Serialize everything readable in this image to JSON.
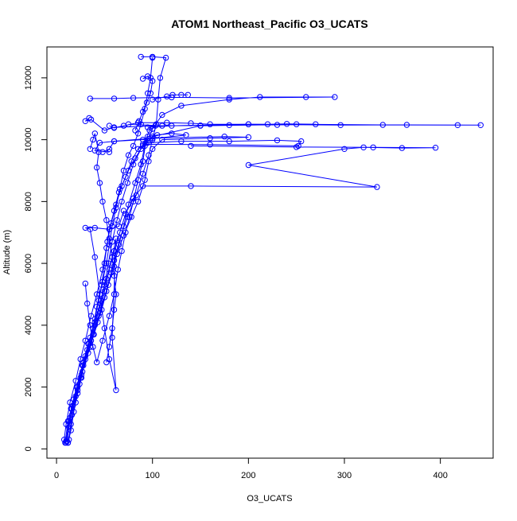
{
  "chart_data": {
    "type": "line",
    "title": "ATOM1 Northeast_Pacific O3_UCATS",
    "xlabel": "O3_UCATS",
    "ylabel": "Altitude (m)",
    "xlim": [
      -10,
      455
    ],
    "ylim": [
      -300,
      13000
    ],
    "xticks": [
      0,
      100,
      200,
      300,
      400
    ],
    "yticks": [
      0,
      2000,
      4000,
      6000,
      8000,
      10000,
      12000
    ],
    "grid": false,
    "marker": "open-circle",
    "series_color": "#0000ff",
    "series": [
      {
        "values": [
          [
            12,
            200
          ],
          [
            15,
            600
          ],
          [
            18,
            1200
          ],
          [
            22,
            1800
          ],
          [
            26,
            2400
          ],
          [
            30,
            3000
          ],
          [
            35,
            3600
          ],
          [
            40,
            4200
          ],
          [
            44,
            4800
          ],
          [
            48,
            5400
          ],
          [
            52,
            6000
          ],
          [
            55,
            6600
          ],
          [
            58,
            7200
          ],
          [
            62,
            7800
          ],
          [
            66,
            8400
          ],
          [
            70,
            9000
          ],
          [
            75,
            9500
          ],
          [
            80,
            9800
          ],
          [
            85,
            10200
          ],
          [
            88,
            10500
          ],
          [
            92,
            11000
          ],
          [
            95,
            11500
          ],
          [
            98,
            12000
          ],
          [
            100,
            12650
          ]
        ]
      },
      {
        "values": [
          [
            8,
            300
          ],
          [
            10,
            800
          ],
          [
            14,
            1500
          ],
          [
            20,
            2200
          ],
          [
            25,
            2900
          ],
          [
            30,
            3500
          ],
          [
            36,
            4300
          ],
          [
            42,
            5000
          ],
          [
            48,
            5800
          ],
          [
            52,
            6500
          ],
          [
            55,
            7100
          ],
          [
            60,
            7700
          ],
          [
            65,
            8300
          ],
          [
            72,
            8800
          ],
          [
            78,
            9300
          ],
          [
            85,
            9700
          ],
          [
            95,
            9900
          ],
          [
            130,
            9950
          ],
          [
            180,
            9950
          ],
          [
            230,
            9980
          ],
          [
            255,
            9950
          ],
          [
            252,
            9800
          ],
          [
            160,
            9840
          ],
          [
            90,
            9850
          ]
        ]
      },
      {
        "values": [
          [
            10,
            200
          ],
          [
            13,
            700
          ],
          [
            16,
            1300
          ],
          [
            22,
            2000
          ],
          [
            28,
            2800
          ],
          [
            34,
            3400
          ],
          [
            40,
            4000
          ],
          [
            46,
            4700
          ],
          [
            50,
            5300
          ],
          [
            54,
            6000
          ],
          [
            58,
            6700
          ],
          [
            63,
            7400
          ],
          [
            68,
            8000
          ],
          [
            74,
            8600
          ],
          [
            80,
            9200
          ],
          [
            88,
            9700
          ],
          [
            100,
            10100
          ],
          [
            150,
            10450
          ],
          [
            250,
            10500
          ],
          [
            340,
            10480
          ],
          [
            418,
            10470
          ],
          [
            442,
            10470
          ],
          [
            365,
            10480
          ],
          [
            296,
            10470
          ],
          [
            200,
            10500
          ],
          [
            120,
            10450
          ],
          [
            95,
            10400
          ]
        ]
      },
      {
        "values": [
          [
            9,
            200
          ],
          [
            12,
            900
          ],
          [
            18,
            1600
          ],
          [
            25,
            2300
          ],
          [
            33,
            3100
          ],
          [
            38,
            3700
          ],
          [
            45,
            4400
          ],
          [
            50,
            5100
          ],
          [
            55,
            5800
          ],
          [
            60,
            6400
          ],
          [
            66,
            7000
          ],
          [
            72,
            7600
          ],
          [
            80,
            8100
          ],
          [
            90,
            8500
          ],
          [
            140,
            8500
          ],
          [
            334,
            8470
          ],
          [
            200,
            9180
          ],
          [
            300,
            9700
          ],
          [
            320,
            9750
          ],
          [
            360,
            9730
          ],
          [
            395,
            9740
          ],
          [
            330,
            9750
          ],
          [
            250,
            9760
          ],
          [
            140,
            9800
          ]
        ]
      },
      {
        "values": [
          [
            11,
            250
          ],
          [
            14,
            1000
          ],
          [
            20,
            1700
          ],
          [
            27,
            2500
          ],
          [
            35,
            3300
          ],
          [
            43,
            4100
          ],
          [
            50,
            4900
          ],
          [
            57,
            5700
          ],
          [
            63,
            6300
          ],
          [
            70,
            6900
          ],
          [
            78,
            7500
          ],
          [
            85,
            8000
          ],
          [
            92,
            8700
          ],
          [
            96,
            9300
          ],
          [
            100,
            9700
          ],
          [
            110,
            10000
          ],
          [
            160,
            10050
          ],
          [
            200,
            10080
          ],
          [
            175,
            10100
          ],
          [
            100,
            10050
          ],
          [
            60,
            9950
          ],
          [
            45,
            9900
          ],
          [
            40,
            9650
          ],
          [
            55,
            9600
          ]
        ]
      },
      {
        "values": [
          [
            13,
            300
          ],
          [
            16,
            1100
          ],
          [
            22,
            1900
          ],
          [
            28,
            2700
          ],
          [
            36,
            3500
          ],
          [
            44,
            4300
          ],
          [
            52,
            5100
          ],
          [
            60,
            5900
          ],
          [
            65,
            6600
          ],
          [
            70,
            7200
          ],
          [
            75,
            7900
          ],
          [
            82,
            8600
          ],
          [
            88,
            9200
          ],
          [
            92,
            9800
          ],
          [
            100,
            10350
          ],
          [
            110,
            10800
          ],
          [
            130,
            11100
          ],
          [
            180,
            11300
          ],
          [
            212,
            11380
          ],
          [
            260,
            11380
          ],
          [
            290,
            11380
          ],
          [
            180,
            11350
          ],
          [
            120,
            11370
          ],
          [
            80,
            11350
          ],
          [
            60,
            11330
          ],
          [
            35,
            11330
          ]
        ]
      },
      {
        "values": [
          [
            10,
            250
          ],
          [
            13,
            900
          ],
          [
            17,
            1400
          ],
          [
            24,
            2100
          ],
          [
            30,
            2900
          ],
          [
            39,
            3700
          ],
          [
            47,
            4500
          ],
          [
            54,
            5300
          ],
          [
            60,
            6100
          ],
          [
            66,
            6800
          ],
          [
            74,
            7500
          ],
          [
            83,
            8200
          ],
          [
            90,
            8900
          ],
          [
            96,
            9500
          ],
          [
            100,
            10000
          ],
          [
            104,
            10500
          ],
          [
            106,
            11300
          ],
          [
            108,
            12000
          ],
          [
            114,
            12650
          ],
          [
            100,
            12680
          ],
          [
            88,
            12680
          ]
        ]
      },
      {
        "values": [
          [
            12,
            200
          ],
          [
            15,
            800
          ],
          [
            20,
            1500
          ],
          [
            26,
            2300
          ],
          [
            32,
            3200
          ],
          [
            38,
            3900
          ],
          [
            42,
            4600
          ],
          [
            47,
            5300
          ],
          [
            50,
            6000
          ],
          [
            53,
            6700
          ],
          [
            57,
            7300
          ],
          [
            62,
            7900
          ],
          [
            68,
            8500
          ],
          [
            75,
            9000
          ],
          [
            82,
            9400
          ],
          [
            90,
            9800
          ],
          [
            97,
            10300
          ],
          [
            103,
            10450
          ],
          [
            60,
            10400
          ],
          [
            50,
            10300
          ],
          [
            36,
            10650
          ],
          [
            30,
            10600
          ],
          [
            34,
            10700
          ]
        ]
      },
      {
        "values": [
          [
            15,
            1300
          ],
          [
            21,
            2000
          ],
          [
            27,
            2700
          ],
          [
            33,
            3400
          ],
          [
            40,
            4100
          ],
          [
            46,
            4800
          ],
          [
            52,
            5500
          ],
          [
            58,
            6200
          ],
          [
            62,
            6800
          ],
          [
            58,
            3600
          ],
          [
            62,
            1900
          ],
          [
            55,
            2900
          ],
          [
            50,
            3900
          ],
          [
            45,
            5000
          ],
          [
            40,
            6200
          ],
          [
            35,
            7100
          ],
          [
            30,
            7150
          ],
          [
            40,
            7150
          ],
          [
            55,
            7100
          ],
          [
            65,
            7200
          ],
          [
            70,
            7700
          ]
        ]
      },
      {
        "values": [
          [
            30,
            5350
          ],
          [
            32,
            4700
          ],
          [
            35,
            4000
          ],
          [
            38,
            3300
          ],
          [
            42,
            2800
          ],
          [
            48,
            3500
          ],
          [
            55,
            4300
          ],
          [
            60,
            5000
          ],
          [
            64,
            5800
          ],
          [
            68,
            6400
          ],
          [
            72,
            7000
          ],
          [
            76,
            7500
          ],
          [
            80,
            8000
          ],
          [
            85,
            8700
          ],
          [
            90,
            9300
          ],
          [
            93,
            9900
          ],
          [
            95,
            10100
          ],
          [
            105,
            10150
          ],
          [
            120,
            10200
          ],
          [
            135,
            10150
          ],
          [
            90,
            10000
          ],
          [
            60,
            9950
          ],
          [
            55,
            9700
          ],
          [
            48,
            9600
          ]
        ]
      },
      {
        "values": [
          [
            35,
            9700
          ],
          [
            38,
            10000
          ],
          [
            40,
            10200
          ],
          [
            44,
            9600
          ],
          [
            42,
            9100
          ],
          [
            45,
            8600
          ],
          [
            48,
            8000
          ],
          [
            52,
            7400
          ],
          [
            55,
            6800
          ],
          [
            58,
            6200
          ],
          [
            60,
            5600
          ],
          [
            62,
            5000
          ],
          [
            60,
            4500
          ],
          [
            58,
            3900
          ],
          [
            55,
            3300
          ],
          [
            52,
            2800
          ]
        ]
      },
      {
        "values": [
          [
            55,
            10450
          ],
          [
            60,
            10380
          ],
          [
            70,
            10450
          ],
          [
            85,
            10550
          ],
          [
            115,
            10550
          ],
          [
            140,
            10530
          ],
          [
            160,
            10500
          ],
          [
            200,
            10500
          ],
          [
            220,
            10500
          ],
          [
            240,
            10510
          ],
          [
            270,
            10500
          ],
          [
            230,
            10480
          ],
          [
            180,
            10470
          ],
          [
            150,
            10460
          ],
          [
            110,
            10450
          ],
          [
            75,
            10500
          ]
        ]
      },
      {
        "values": [
          [
            90,
            11970
          ],
          [
            95,
            12050
          ],
          [
            100,
            11900
          ],
          [
            98,
            11500
          ],
          [
            94,
            11200
          ],
          [
            90,
            10900
          ],
          [
            86,
            10600
          ],
          [
            82,
            10300
          ]
        ]
      },
      {
        "values": [
          [
            100,
            11300
          ],
          [
            115,
            11400
          ],
          [
            121,
            11450
          ],
          [
            130,
            11450
          ],
          [
            137,
            11450
          ]
        ]
      }
    ]
  }
}
